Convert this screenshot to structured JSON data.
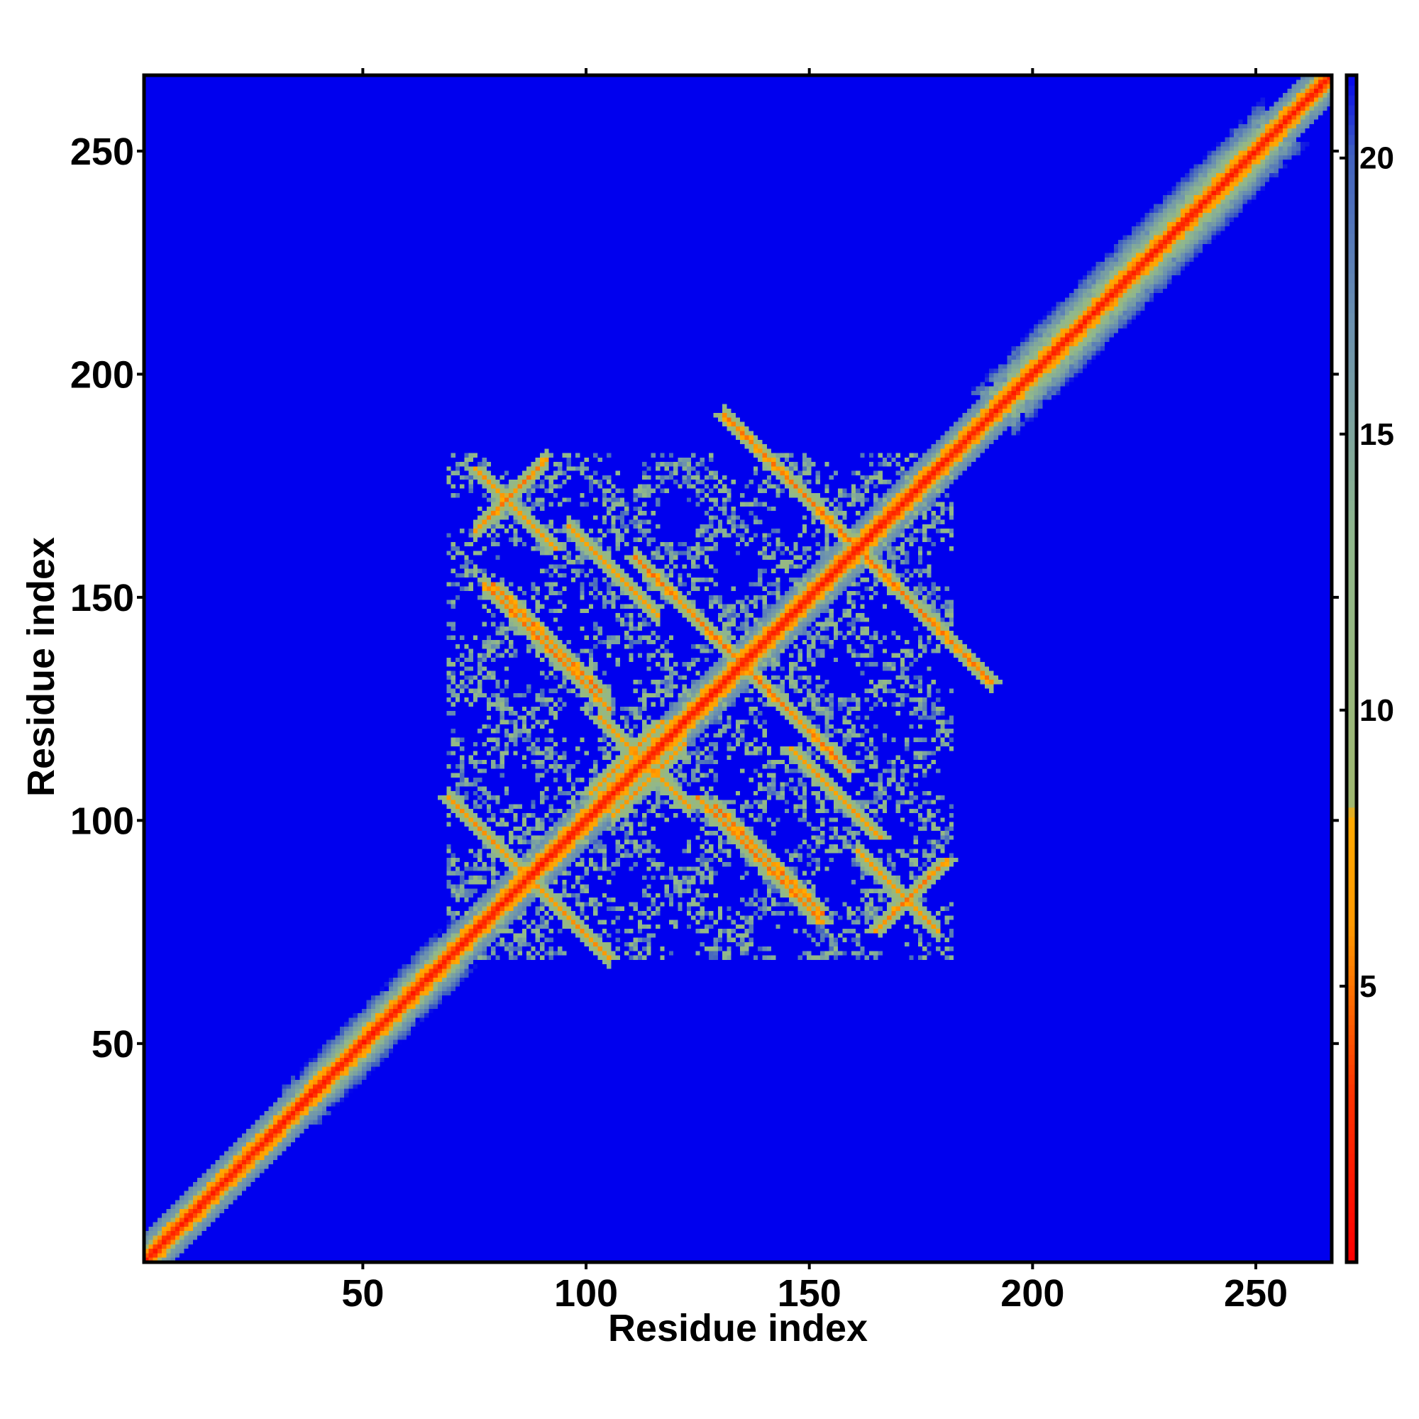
{
  "chart_data": {
    "type": "heatmap",
    "title": "",
    "xlabel": "Residue index",
    "ylabel": "Residue index",
    "xlim": [
      1,
      267
    ],
    "ylim": [
      1,
      267
    ],
    "x_ticks": [
      50,
      100,
      150,
      200,
      250
    ],
    "y_ticks": [
      50,
      100,
      150,
      200,
      250
    ],
    "colorbar": {
      "ticks": [
        5,
        10,
        15,
        20
      ],
      "range": [
        0,
        21.5
      ],
      "colors": [
        {
          "value": 0,
          "color": "#ff0000"
        },
        {
          "value": 3,
          "color": "#ff3300"
        },
        {
          "value": 6,
          "color": "#ff9900"
        },
        {
          "value": 8,
          "color": "#ffaa00"
        },
        {
          "value": 8.2,
          "color": "#a0b870"
        },
        {
          "value": 13,
          "color": "#90b88c"
        },
        {
          "value": 17,
          "color": "#6a90b0"
        },
        {
          "value": 20,
          "color": "#4060c0"
        },
        {
          "value": 21.5,
          "color": "#0000ee"
        }
      ]
    },
    "background_value": 21.5,
    "description_units": "distance matrix (contact map)",
    "diagonal": {
      "from": 1,
      "to": 267,
      "core_value": 1.5,
      "band_halfwidth": 4
    },
    "broad_diagonal_segments": [
      {
        "from": 1,
        "to": 30,
        "halfwidth": 5
      },
      {
        "from": 38,
        "to": 70,
        "halfwidth": 8
      },
      {
        "from": 195,
        "to": 252,
        "halfwidth": 10
      }
    ],
    "off_diagonal_features": [
      {
        "type": "antidiagonal",
        "center": [
          83,
          169
        ],
        "length": 9,
        "value": 7
      },
      {
        "type": "antidiagonal",
        "center": [
          106,
          154
        ],
        "length": 6,
        "value": 8
      },
      {
        "type": "antidiagonal",
        "center": [
          90,
          140
        ],
        "length": 12,
        "value": 6
      },
      {
        "type": "antidiagonal",
        "center": [
          134,
          134
        ],
        "length": 24,
        "value": 6
      },
      {
        "type": "antidiagonal",
        "center": [
          160,
          160
        ],
        "length": 30,
        "value": 6
      },
      {
        "type": "antidiagonal",
        "center": [
          112,
          112
        ],
        "length": 10,
        "value": 7
      },
      {
        "type": "antidiagonal",
        "center": [
          86,
          86
        ],
        "length": 18,
        "value": 7
      },
      {
        "type": "antidiagonal",
        "center": [
          138,
          90
        ],
        "length": 14,
        "value": 6
      },
      {
        "type": "antidiagonal",
        "center": [
          155,
          105
        ],
        "length": 10,
        "value": 7
      },
      {
        "type": "diagonal",
        "center": [
          172,
          82
        ],
        "length": 8,
        "value": 6
      },
      {
        "type": "diagonal",
        "center": [
          108,
          113
        ],
        "length": 8,
        "value": 7
      }
    ],
    "scattered_region": {
      "x": [
        68,
        182
      ],
      "y": [
        68,
        182
      ]
    }
  }
}
